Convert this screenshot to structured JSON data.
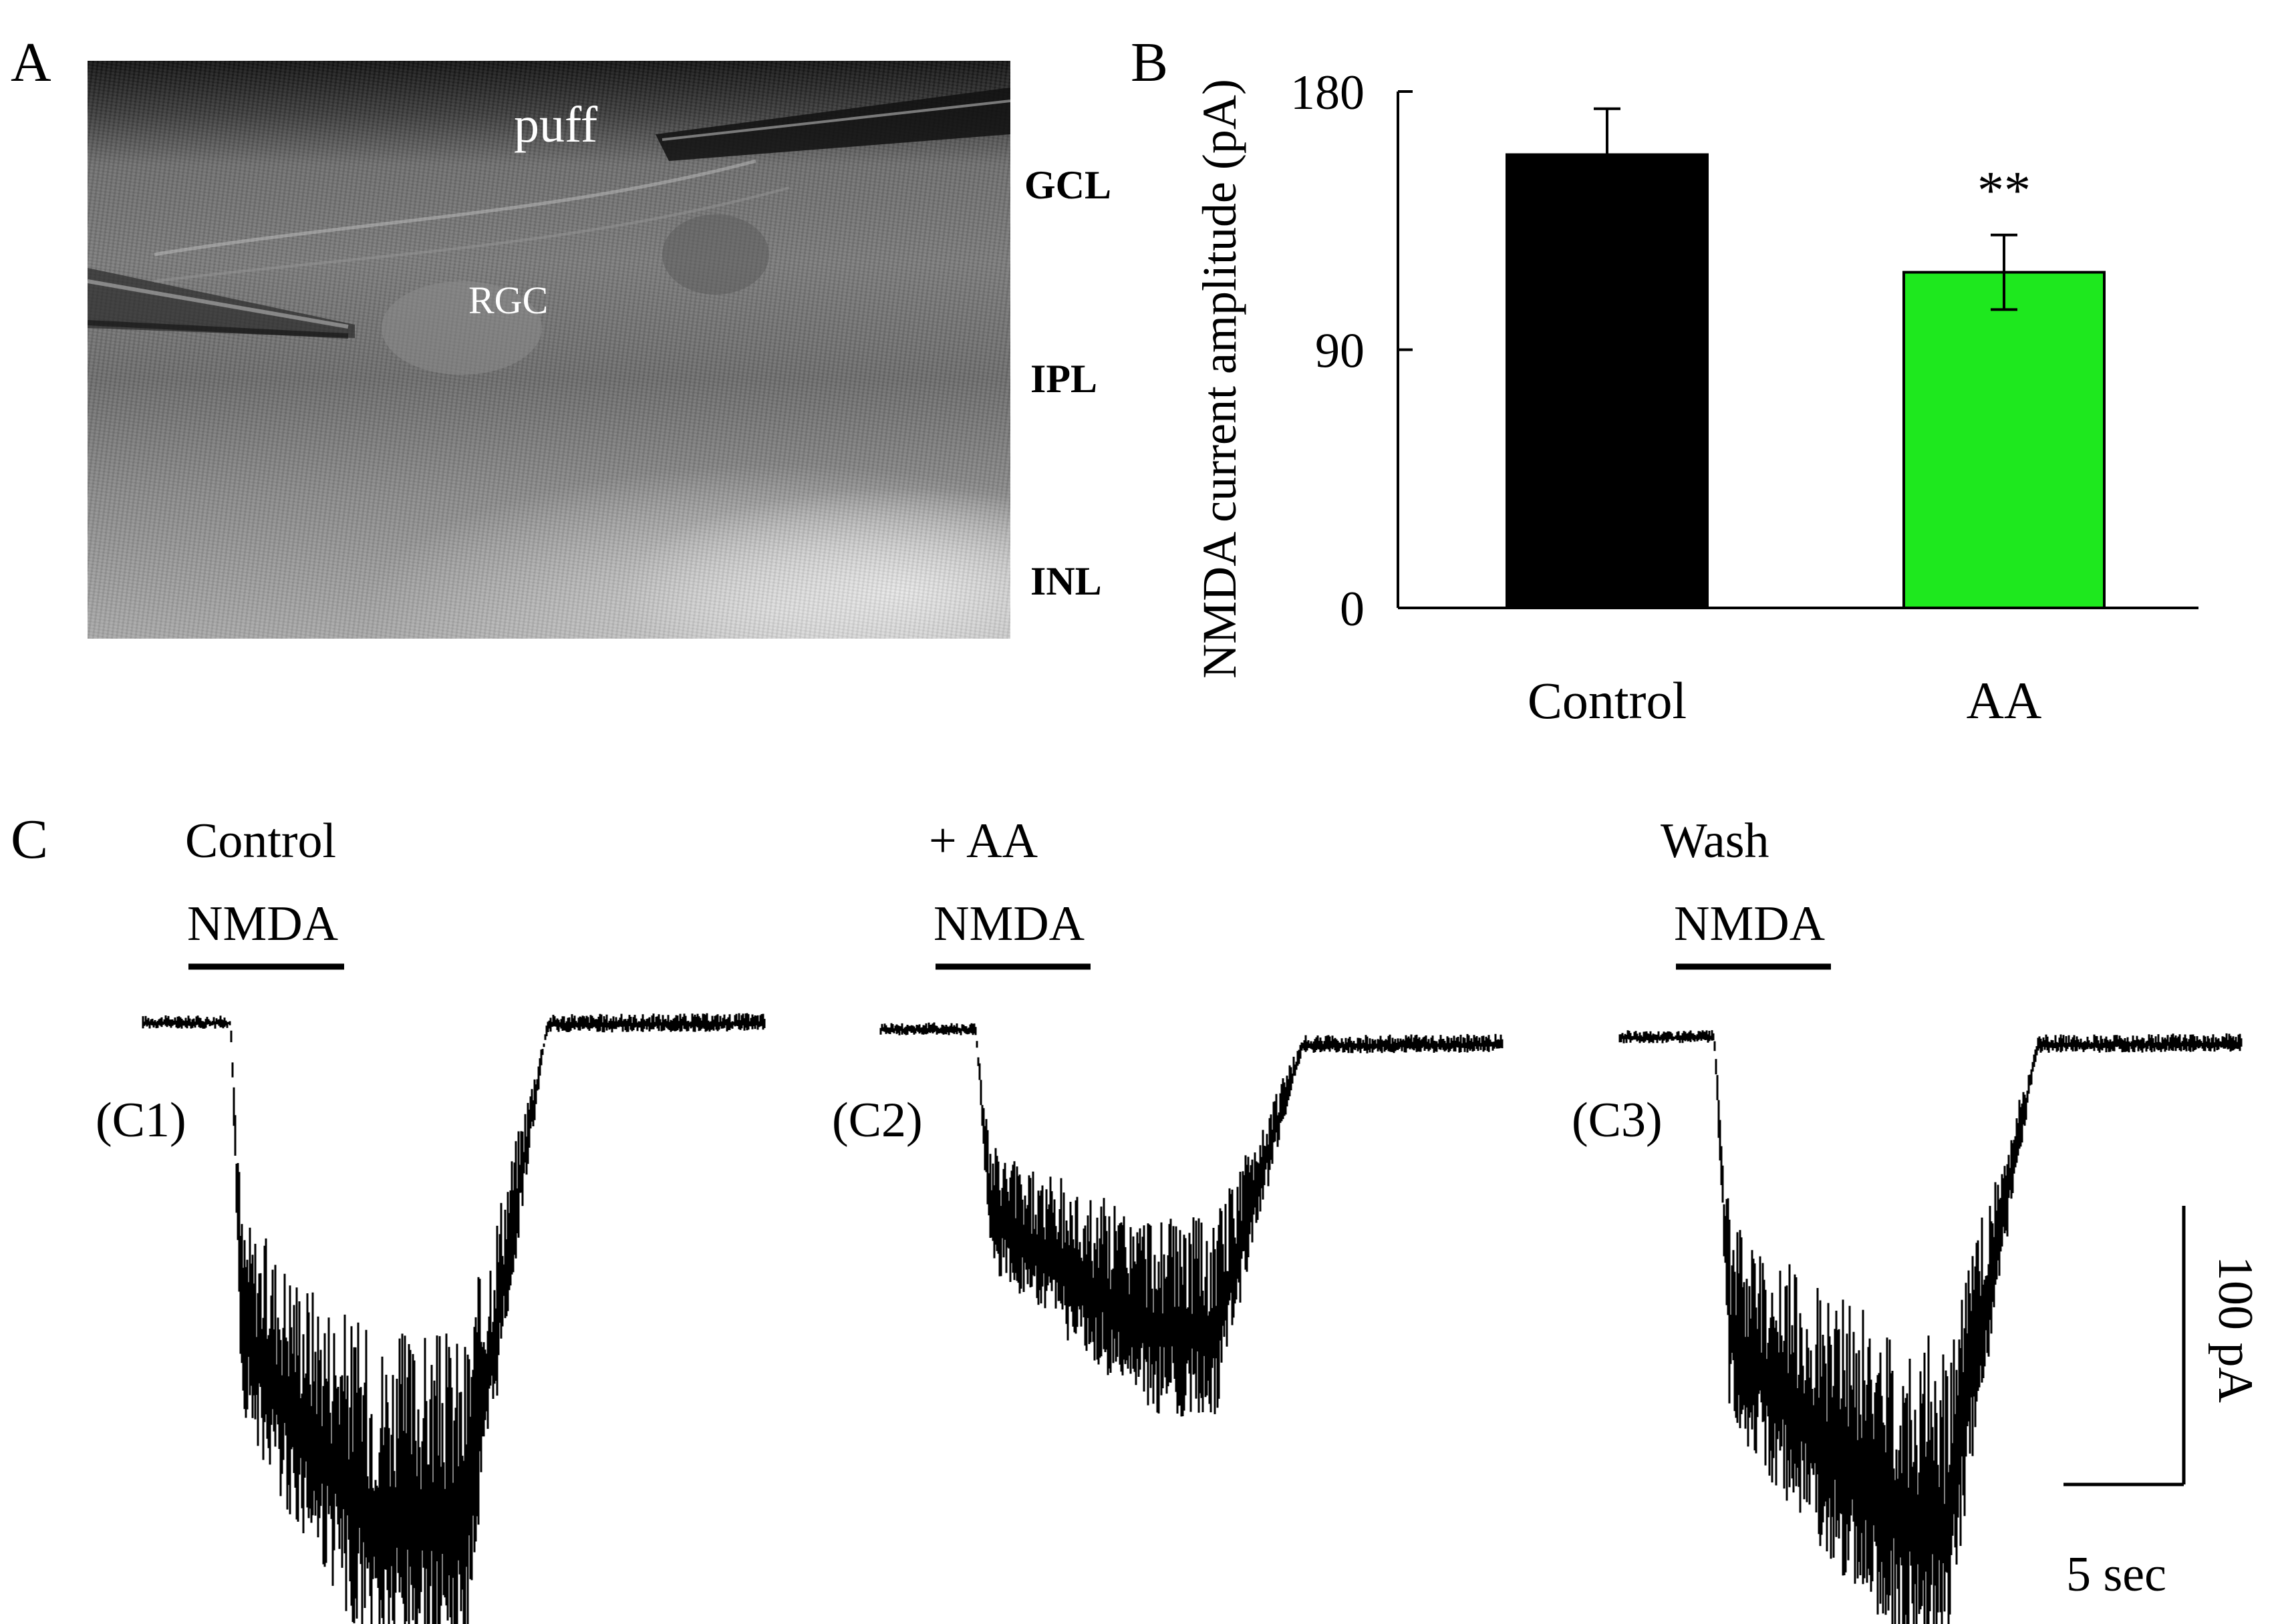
{
  "panels": {
    "a": "A",
    "b": "B",
    "c": "C"
  },
  "panel_a": {
    "labels": {
      "puff": "puff",
      "rgc": "RGC",
      "gcl": "GCL",
      "ipl": "IPL",
      "inl": "INL"
    }
  },
  "chart_data": [
    {
      "type": "bar",
      "categories": [
        "Control",
        "AA"
      ],
      "values": [
        158,
        117
      ],
      "errors": [
        16,
        13
      ],
      "colors": [
        "#000000",
        "#1ee81e"
      ],
      "ylabel": "NMDA current amplitude (pA)",
      "ylim": [
        0,
        180
      ],
      "yticks": [
        "0",
        "90",
        "180"
      ],
      "significance": [
        {
          "category": "AA",
          "text": "**"
        }
      ],
      "grid": false
    },
    {
      "type": "line",
      "traces": [
        {
          "id": "C1",
          "label": "(C1)",
          "condition": "Control",
          "stimulus": "NMDA",
          "baseline_pA": 0,
          "peak_pA": -165,
          "end_pA": 0
        },
        {
          "id": "C2",
          "label": "(C2)",
          "condition": "+ AA",
          "stimulus": "NMDA",
          "baseline_pA": 0,
          "peak_pA": -100,
          "end_pA": -5
        },
        {
          "id": "C3",
          "label": "(C3)",
          "condition": "Wash",
          "stimulus": "NMDA",
          "baseline_pA": 0,
          "peak_pA": -160,
          "end_pA": -2
        }
      ],
      "scale_bar": {
        "y_label": "100 pA",
        "x_label": "5 sec",
        "y_value": 100,
        "x_value": 5
      },
      "color": "#000000"
    }
  ]
}
